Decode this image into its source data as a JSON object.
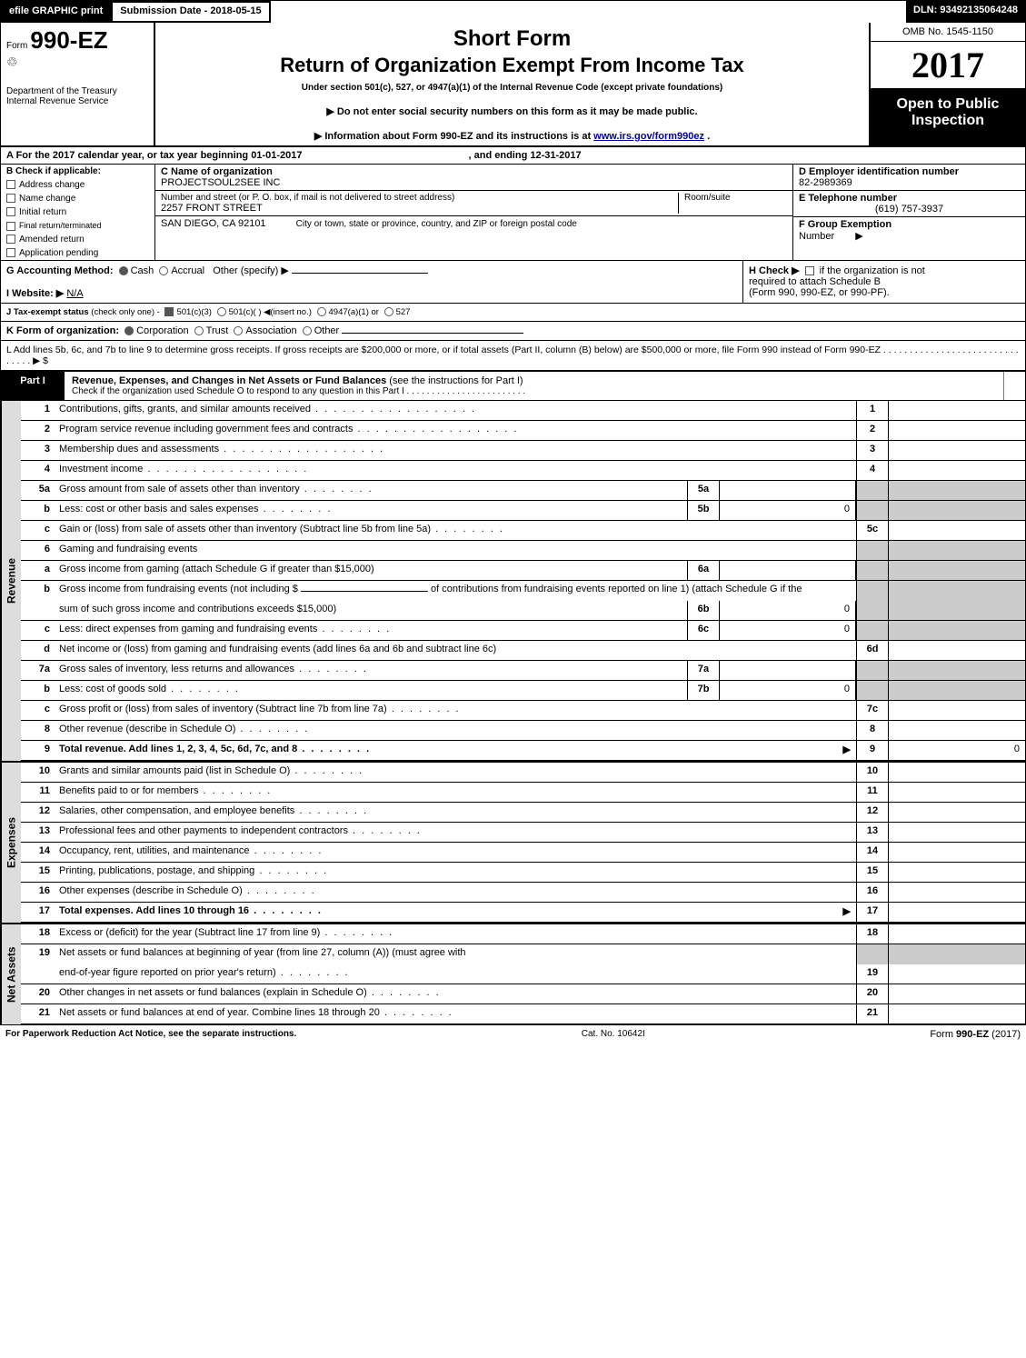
{
  "meta": {
    "efile_label": "efile GRAPHIC print",
    "submission_date_label": "Submission Date - 2018-05-15",
    "dln_label": "DLN: 93492135064248",
    "omb": "OMB No. 1545-1150",
    "year": "2017",
    "open_public_l1": "Open to Public",
    "open_public_l2": "Inspection",
    "form_prefix": "Form",
    "form_number": "990-EZ",
    "short_form": "Short Form",
    "main_title": "Return of Organization Exempt From Income Tax",
    "subtitle": "Under section 501(c), 527, or 4947(a)(1) of the Internal Revenue Code (except private foundations)",
    "ssn_note": "▶ Do not enter social security numbers on this form as it may be made public.",
    "info_note_prefix": "▶ Information about Form 990-EZ and its instructions is at ",
    "info_url": "www.irs.gov/form990ez",
    "info_note_suffix": ".",
    "dept1": "Department of the Treasury",
    "dept2": "Internal Revenue Service"
  },
  "period": {
    "a_text": "A   For the 2017 calendar year, or tax year beginning 01-01-2017",
    "a_end": ", and ending 12-31-2017"
  },
  "boxB": {
    "heading": "B  Check if applicable:",
    "items": [
      "Address change",
      "Name change",
      "Initial return",
      "Final return/terminated",
      "Amended return",
      "Application pending"
    ]
  },
  "boxC": {
    "label": "C Name of organization",
    "org": "PROJECTSOUL2SEE INC",
    "street_label": "Number and street (or P. O. box, if mail is not delivered to street address)",
    "street": "2257 FRONT STREET",
    "room_label": "Room/suite",
    "city_label": "City or town, state or province, country, and ZIP or foreign postal code",
    "city": "SAN DIEGO, CA   92101"
  },
  "boxD": {
    "label": "D Employer identification number",
    "value": "82-2989369"
  },
  "boxE": {
    "label": "E Telephone number",
    "value": "(619) 757-3937"
  },
  "boxF": {
    "label": "F Group Exemption",
    "label2": "Number",
    "tri": "▶"
  },
  "boxG_prefix": "G Accounting Method:",
  "boxG_cash": "Cash",
  "boxG_accrual": "Accrual",
  "boxG_other": "Other (specify) ▶",
  "boxH_l1": "H   Check ▶",
  "boxH_l1b": "if the organization is not",
  "boxH_l2": "required to attach Schedule B",
  "boxH_l3": "(Form 990, 990-EZ, or 990-PF).",
  "boxI_label": "I Website: ▶",
  "boxI_value": "N/A",
  "boxJ_prefix": "J Tax-exempt status",
  "boxJ_note": "(check only one) -",
  "boxJ_opts": [
    "501(c)(3)",
    "501(c)(  ) ◀(insert no.)",
    "4947(a)(1) or",
    "527"
  ],
  "boxK_prefix": "K Form of organization:",
  "boxK_opts": [
    "Corporation",
    "Trust",
    "Association",
    "Other"
  ],
  "boxL": "L Add lines 5b, 6c, and 7b to line 9 to determine gross receipts. If gross receipts are $200,000 or more, or if total assets (Part II, column (B) below) are $500,000 or more, file Form 990 instead of Form 990-EZ  . . . . . . . . . . . . . . . . . . . . . . . . . . . . . . .  ▶ $",
  "part1": {
    "tag": "Part I",
    "title": "Revenue, Expenses, and Changes in Net Assets or Fund Balances",
    "title_suffix": " (see the instructions for Part I)",
    "sub": "Check if the organization used Schedule O to respond to any question in this Part I . . . . . . . . . . . . . . . . . . . . . . . .",
    "side_tab_revenue": "Revenue",
    "side_tab_expenses": "Expenses",
    "side_tab_netassets": "Net Assets"
  },
  "lines": {
    "l1": {
      "num": "1",
      "desc": "Contributions, gifts, grants, and similar amounts received",
      "rnum": "1"
    },
    "l2": {
      "num": "2",
      "desc": "Program service revenue including government fees and contracts",
      "rnum": "2"
    },
    "l3": {
      "num": "3",
      "desc": "Membership dues and assessments",
      "rnum": "3"
    },
    "l4": {
      "num": "4",
      "desc": "Investment income",
      "rnum": "4"
    },
    "l5a": {
      "num": "5a",
      "desc": "Gross amount from sale of assets other than inventory",
      "mid": "5a",
      "midval": ""
    },
    "l5b": {
      "num": "b",
      "desc": "Less: cost or other basis and sales expenses",
      "mid": "5b",
      "midval": "0"
    },
    "l5c": {
      "num": "c",
      "desc": "Gain or (loss) from sale of assets other than inventory (Subtract line 5b from line 5a)",
      "rnum": "5c"
    },
    "l6": {
      "num": "6",
      "desc": "Gaming and fundraising events"
    },
    "l6a": {
      "num": "a",
      "desc": "Gross income from gaming (attach Schedule G if greater than $15,000)",
      "mid": "6a",
      "midval": ""
    },
    "l6b": {
      "num": "b",
      "desc_pre": "Gross income from fundraising events (not including $ ",
      "desc_mid": "___________________",
      "desc_post": " of contributions from fundraising events reported on line 1) (attach Schedule G if the",
      "desc2": "sum of such gross income and contributions exceeds $15,000)",
      "mid": "6b",
      "midval": "0"
    },
    "l6c": {
      "num": "c",
      "desc": "Less: direct expenses from gaming and fundraising events",
      "mid": "6c",
      "midval": "0"
    },
    "l6d": {
      "num": "d",
      "desc": "Net income or (loss) from gaming and fundraising events (add lines 6a and 6b and subtract line 6c)",
      "rnum": "6d"
    },
    "l7a": {
      "num": "7a",
      "desc": "Gross sales of inventory, less returns and allowances",
      "mid": "7a",
      "midval": ""
    },
    "l7b": {
      "num": "b",
      "desc": "Less: cost of goods sold",
      "mid": "7b",
      "midval": "0"
    },
    "l7c": {
      "num": "c",
      "desc": "Gross profit or (loss) from sales of inventory (Subtract line 7b from line 7a)",
      "rnum": "7c"
    },
    "l8": {
      "num": "8",
      "desc": "Other revenue (describe in Schedule O)",
      "rnum": "8"
    },
    "l9": {
      "num": "9",
      "desc": "Total revenue. Add lines 1, 2, 3, 4, 5c, 6d, 7c, and 8",
      "rnum": "9",
      "rval": "0",
      "bold": true,
      "tri": true
    },
    "l10": {
      "num": "10",
      "desc": "Grants and similar amounts paid (list in Schedule O)",
      "rnum": "10"
    },
    "l11": {
      "num": "11",
      "desc": "Benefits paid to or for members",
      "rnum": "11"
    },
    "l12": {
      "num": "12",
      "desc": "Salaries, other compensation, and employee benefits",
      "rnum": "12"
    },
    "l13": {
      "num": "13",
      "desc": "Professional fees and other payments to independent contractors",
      "rnum": "13"
    },
    "l14": {
      "num": "14",
      "desc": "Occupancy, rent, utilities, and maintenance",
      "rnum": "14"
    },
    "l15": {
      "num": "15",
      "desc": "Printing, publications, postage, and shipping",
      "rnum": "15"
    },
    "l16": {
      "num": "16",
      "desc": "Other expenses (describe in Schedule O)",
      "rnum": "16"
    },
    "l17": {
      "num": "17",
      "desc": "Total expenses. Add lines 10 through 16",
      "rnum": "17",
      "bold": true,
      "tri": true
    },
    "l18": {
      "num": "18",
      "desc": "Excess or (deficit) for the year (Subtract line 17 from line 9)",
      "rnum": "18"
    },
    "l19": {
      "num": "19",
      "desc": "Net assets or fund balances at beginning of year (from line 27, column (A)) (must agree with",
      "desc2": "end-of-year figure reported on prior year's return)",
      "rnum": "19"
    },
    "l20": {
      "num": "20",
      "desc": "Other changes in net assets or fund balances (explain in Schedule O)",
      "rnum": "20"
    },
    "l21": {
      "num": "21",
      "desc": "Net assets or fund balances at end of year. Combine lines 18 through 20",
      "rnum": "21"
    }
  },
  "footer": {
    "left": "For Paperwork Reduction Act Notice, see the separate instructions.",
    "mid": "Cat. No. 10642I",
    "right_prefix": "Form ",
    "right_form": "990-EZ",
    "right_suffix": " (2017)"
  },
  "colors": {
    "black": "#000000",
    "grey": "#cccccc",
    "link": "#0000aa"
  }
}
